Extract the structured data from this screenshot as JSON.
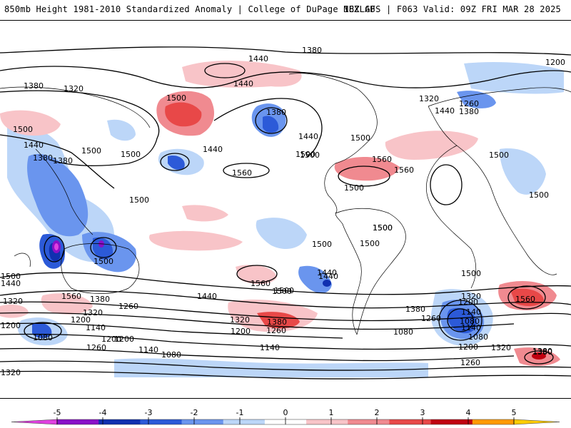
{
  "header": {
    "left": "850mb Height 1981-2010 Standardized Anomaly | College of DuPage NEXLAB",
    "right": "18Z GFS | F063 Valid: 09Z FRI MAR 28 2025"
  },
  "colorbar": {
    "ticks": [
      "-5",
      "-4",
      "-3",
      "-2",
      "-1",
      "0",
      "1",
      "2",
      "3",
      "4",
      "5"
    ],
    "colors": [
      "#e040e0",
      "#8a10c8",
      "#1030b0",
      "#2c5ad8",
      "#6a95ee",
      "#bcd6f8",
      "#ffffff",
      "#f8c4c8",
      "#f08a90",
      "#e84848",
      "#c00010",
      "#ff9a00",
      "#ffcc00"
    ]
  },
  "contour_labels": [
    "1380",
    "1440",
    "1320",
    "1500",
    "1560",
    "1260",
    "1200",
    "1140",
    "1080"
  ],
  "map_labels": [
    {
      "text": "1380"
    },
    {
      "text": "1440"
    },
    {
      "text": "1200"
    },
    {
      "text": "1380"
    },
    {
      "text": "1320"
    },
    {
      "text": "1440"
    },
    {
      "text": "1500"
    },
    {
      "text": "1380"
    },
    {
      "text": "1320"
    },
    {
      "text": "1260"
    },
    {
      "text": "1440"
    },
    {
      "text": "1380"
    },
    {
      "text": "1500"
    },
    {
      "text": "1440"
    },
    {
      "text": "1500"
    },
    {
      "text": "1440"
    },
    {
      "text": "1380"
    },
    {
      "text": "1500"
    },
    {
      "text": "1440"
    },
    {
      "text": "1500"
    },
    {
      "text": "1380"
    },
    {
      "text": "1500"
    },
    {
      "text": "1560"
    },
    {
      "text": "1500"
    },
    {
      "text": "1560"
    },
    {
      "text": "1560"
    },
    {
      "text": "1500"
    },
    {
      "text": "1500"
    },
    {
      "text": "1500"
    },
    {
      "text": "1500"
    },
    {
      "text": "1500"
    },
    {
      "text": "1500"
    },
    {
      "text": "1500"
    },
    {
      "text": "1440"
    },
    {
      "text": "1500"
    },
    {
      "text": "1560"
    },
    {
      "text": "1500"
    },
    {
      "text": "1560"
    },
    {
      "text": "1500"
    },
    {
      "text": "1440"
    },
    {
      "text": "1380"
    },
    {
      "text": "1260"
    },
    {
      "text": "1320"
    },
    {
      "text": "1200"
    },
    {
      "text": "1140"
    },
    {
      "text": "1080"
    },
    {
      "text": "1380"
    },
    {
      "text": "1320"
    },
    {
      "text": "1260"
    },
    {
      "text": "1200"
    },
    {
      "text": "1320"
    },
    {
      "text": "1200"
    },
    {
      "text": "1140"
    },
    {
      "text": "1080"
    },
    {
      "text": "1140"
    },
    {
      "text": "1140"
    },
    {
      "text": "1080"
    },
    {
      "text": "1200"
    },
    {
      "text": "1380"
    },
    {
      "text": "1260"
    },
    {
      "text": "1500"
    },
    {
      "text": "1440"
    },
    {
      "text": "1320"
    },
    {
      "text": "1200"
    },
    {
      "text": "1080"
    },
    {
      "text": "1200"
    },
    {
      "text": "1260"
    },
    {
      "text": "1320"
    },
    {
      "text": "1380"
    },
    {
      "text": "1560"
    },
    {
      "text": "1500"
    },
    {
      "text": "1440"
    },
    {
      "text": "1500"
    },
    {
      "text": "1080"
    },
    {
      "text": "1320"
    },
    {
      "text": "1380"
    },
    {
      "text": "1200"
    },
    {
      "text": "1140"
    },
    {
      "text": "1260"
    }
  ]
}
